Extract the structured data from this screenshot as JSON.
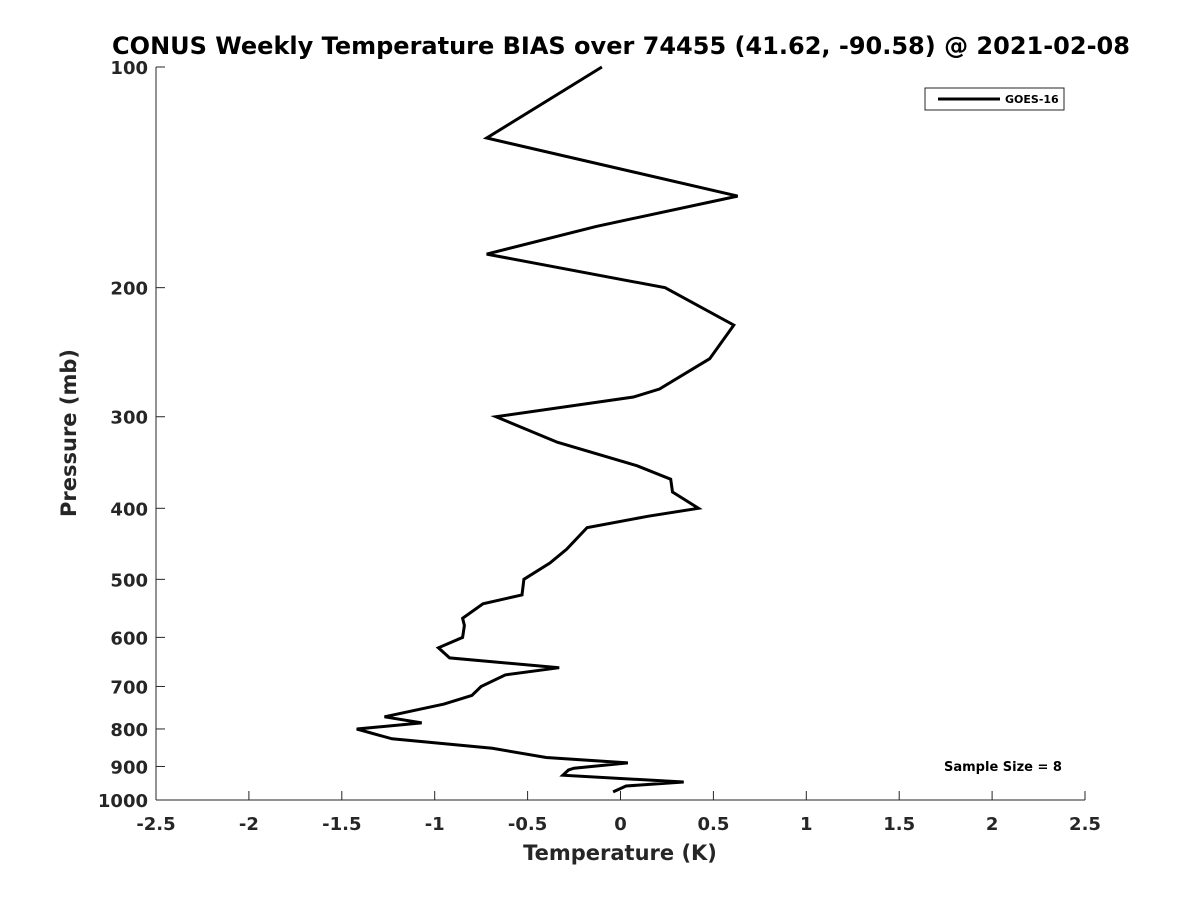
{
  "chart_data": {
    "type": "line",
    "title": "CONUS Weekly Temperature BIAS over 74455 (41.62, -90.58) @ 2021-02-08",
    "xlabel": "Temperature (K)",
    "ylabel": "Pressure (mb)",
    "xlim": [
      -2.5,
      2.5
    ],
    "ylim": [
      1000,
      100
    ],
    "yscale": "log",
    "y_reversed": true,
    "xticks": [
      -2.5,
      -2,
      -1.5,
      -1,
      -0.5,
      0,
      0.5,
      1,
      1.5,
      2,
      2.5
    ],
    "xtick_labels": [
      "-2.5",
      "-2",
      "-1.5",
      "-1",
      "-0.5",
      "0",
      "0.5",
      "1",
      "1.5",
      "2",
      "2.5"
    ],
    "yticks": [
      100,
      200,
      300,
      400,
      500,
      600,
      700,
      800,
      900,
      1000
    ],
    "ytick_labels": [
      "100",
      "200",
      "300",
      "400",
      "500",
      "600",
      "700",
      "800",
      "900",
      "1000"
    ],
    "grid": false,
    "legend_position": "top-right",
    "annotation": "Sample Size = 8",
    "series": [
      {
        "name": "GOES-16",
        "color": "#000000",
        "points": [
          {
            "x": -0.1,
            "y": 100
          },
          {
            "x": -0.72,
            "y": 125
          },
          {
            "x": 0.63,
            "y": 150
          },
          {
            "x": -0.13,
            "y": 165
          },
          {
            "x": -0.72,
            "y": 180
          },
          {
            "x": 0.24,
            "y": 200
          },
          {
            "x": 0.61,
            "y": 225
          },
          {
            "x": 0.48,
            "y": 250
          },
          {
            "x": 0.21,
            "y": 275
          },
          {
            "x": 0.07,
            "y": 282
          },
          {
            "x": -0.67,
            "y": 300
          },
          {
            "x": -0.34,
            "y": 325
          },
          {
            "x": 0.09,
            "y": 350
          },
          {
            "x": 0.27,
            "y": 365
          },
          {
            "x": 0.28,
            "y": 380
          },
          {
            "x": 0.42,
            "y": 400
          },
          {
            "x": 0.15,
            "y": 410
          },
          {
            "x": -0.18,
            "y": 425
          },
          {
            "x": -0.29,
            "y": 455
          },
          {
            "x": -0.38,
            "y": 475
          },
          {
            "x": -0.52,
            "y": 500
          },
          {
            "x": -0.53,
            "y": 525
          },
          {
            "x": -0.74,
            "y": 540
          },
          {
            "x": -0.85,
            "y": 565
          },
          {
            "x": -0.84,
            "y": 578
          },
          {
            "x": -0.85,
            "y": 600
          },
          {
            "x": -0.98,
            "y": 620
          },
          {
            "x": -0.92,
            "y": 640
          },
          {
            "x": -0.33,
            "y": 660
          },
          {
            "x": -0.62,
            "y": 675
          },
          {
            "x": -0.75,
            "y": 700
          },
          {
            "x": -0.8,
            "y": 720
          },
          {
            "x": -0.95,
            "y": 740
          },
          {
            "x": -1.27,
            "y": 770
          },
          {
            "x": -1.07,
            "y": 785
          },
          {
            "x": -1.42,
            "y": 800
          },
          {
            "x": -1.23,
            "y": 825
          },
          {
            "x": -0.69,
            "y": 850
          },
          {
            "x": -0.4,
            "y": 875
          },
          {
            "x": 0.04,
            "y": 890
          },
          {
            "x": -0.25,
            "y": 905
          },
          {
            "x": -0.28,
            "y": 910
          },
          {
            "x": -0.31,
            "y": 925
          },
          {
            "x": 0.34,
            "y": 945
          },
          {
            "x": 0.03,
            "y": 957
          },
          {
            "x": -0.04,
            "y": 975
          }
        ]
      }
    ]
  }
}
